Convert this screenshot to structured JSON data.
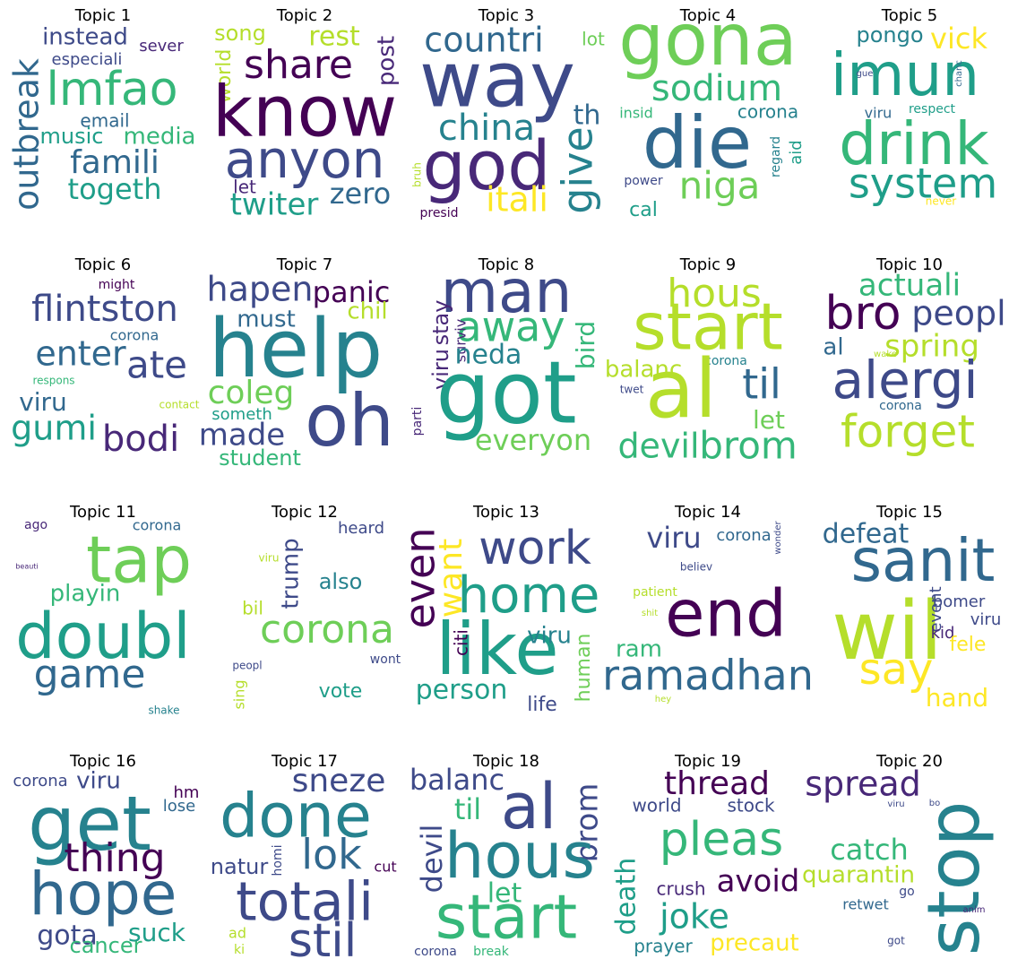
{
  "chart_data": [
    {
      "type": "wordcloud",
      "title": "Topic 1",
      "words": [
        "instead",
        "sever",
        "especiali",
        "outbreak",
        "lmfao",
        "email",
        "music",
        "media",
        "famili",
        "togeth"
      ]
    },
    {
      "type": "wordcloud",
      "title": "Topic 2",
      "words": [
        "song",
        "rest",
        "share",
        "post",
        "world",
        "know",
        "anyon",
        "let",
        "twiter",
        "zero"
      ]
    },
    {
      "type": "wordcloud",
      "title": "Topic 3",
      "words": [
        "countri",
        "lot",
        "way",
        "th",
        "china",
        "god",
        "give",
        "bruh",
        "itali",
        "presid"
      ]
    },
    {
      "type": "wordcloud",
      "title": "Topic 4",
      "words": [
        "gona",
        "sodium",
        "corona",
        "insid",
        "die",
        "regard",
        "aid",
        "power",
        "niga",
        "cal"
      ]
    },
    {
      "type": "wordcloud",
      "title": "Topic 5",
      "words": [
        "pongo",
        "vick",
        "imun",
        "gue",
        "chanc",
        "viru",
        "respect",
        "drink",
        "system",
        "never"
      ]
    },
    {
      "type": "wordcloud",
      "title": "Topic 6",
      "words": [
        "might",
        "flintston",
        "corona",
        "enter",
        "ate",
        "respons",
        "viru",
        "contact",
        "gumi",
        "bodi"
      ]
    },
    {
      "type": "wordcloud",
      "title": "Topic 7",
      "words": [
        "hapen",
        "panic",
        "must",
        "chil",
        "help",
        "coleg",
        "someth",
        "made",
        "oh",
        "student"
      ]
    },
    {
      "type": "wordcloud",
      "title": "Topic 8",
      "words": [
        "man",
        "away",
        "stay",
        "viru",
        "parti",
        "surviv",
        "bird",
        "neda",
        "got",
        "everyon"
      ]
    },
    {
      "type": "wordcloud",
      "title": "Topic 9",
      "words": [
        "hous",
        "start",
        "balanc",
        "corona",
        "al",
        "til",
        "twet",
        "let",
        "devil",
        "brom"
      ]
    },
    {
      "type": "wordcloud",
      "title": "Topic 10",
      "words": [
        "actuali",
        "bro",
        "peopl",
        "al",
        "wake",
        "spring",
        "alergi",
        "corona",
        "forget"
      ]
    },
    {
      "type": "wordcloud",
      "title": "Topic 11",
      "words": [
        "ago",
        "corona",
        "tap",
        "beauti",
        "playin",
        "doubl",
        "game",
        "shake"
      ]
    },
    {
      "type": "wordcloud",
      "title": "Topic 12",
      "words": [
        "heard",
        "viru",
        "trump",
        "also",
        "bil",
        "corona",
        "peopl",
        "wont",
        "sing",
        "vote"
      ]
    },
    {
      "type": "wordcloud",
      "title": "Topic 13",
      "words": [
        "even",
        "want",
        "work",
        "home",
        "like",
        "viru",
        "citi",
        "human",
        "person",
        "life"
      ]
    },
    {
      "type": "wordcloud",
      "title": "Topic 14",
      "words": [
        "viru",
        "corona",
        "wonder",
        "believ",
        "patient",
        "shit",
        "end",
        "ram",
        "ramadhan",
        "hey"
      ]
    },
    {
      "type": "wordcloud",
      "title": "Topic 15",
      "words": [
        "defeat",
        "sanit",
        "wil",
        "event",
        "bomer",
        "viru",
        "kid",
        "fele",
        "say",
        "hand"
      ]
    },
    {
      "type": "wordcloud",
      "title": "Topic 16",
      "words": [
        "corona",
        "viru",
        "hm",
        "lose",
        "get",
        "thing",
        "hope",
        "gota",
        "suck",
        "cancer"
      ]
    },
    {
      "type": "wordcloud",
      "title": "Topic 17",
      "words": [
        "sneze",
        "done",
        "homi",
        "lok",
        "natur",
        "cut",
        "totali",
        "ad",
        "ki",
        "stil"
      ]
    },
    {
      "type": "wordcloud",
      "title": "Topic 18",
      "words": [
        "balanc",
        "al",
        "brom",
        "til",
        "devil",
        "hous",
        "let",
        "start",
        "corona",
        "break"
      ]
    },
    {
      "type": "wordcloud",
      "title": "Topic 19",
      "words": [
        "thread",
        "world",
        "stock",
        "pleas",
        "death",
        "avoid",
        "crush",
        "joke",
        "prayer",
        "precaut"
      ]
    },
    {
      "type": "wordcloud",
      "title": "Topic 20",
      "words": [
        "spread",
        "viru",
        "bo",
        "stop",
        "catch",
        "quarantin",
        "go",
        "retwet",
        "anim",
        "got"
      ]
    }
  ]
}
